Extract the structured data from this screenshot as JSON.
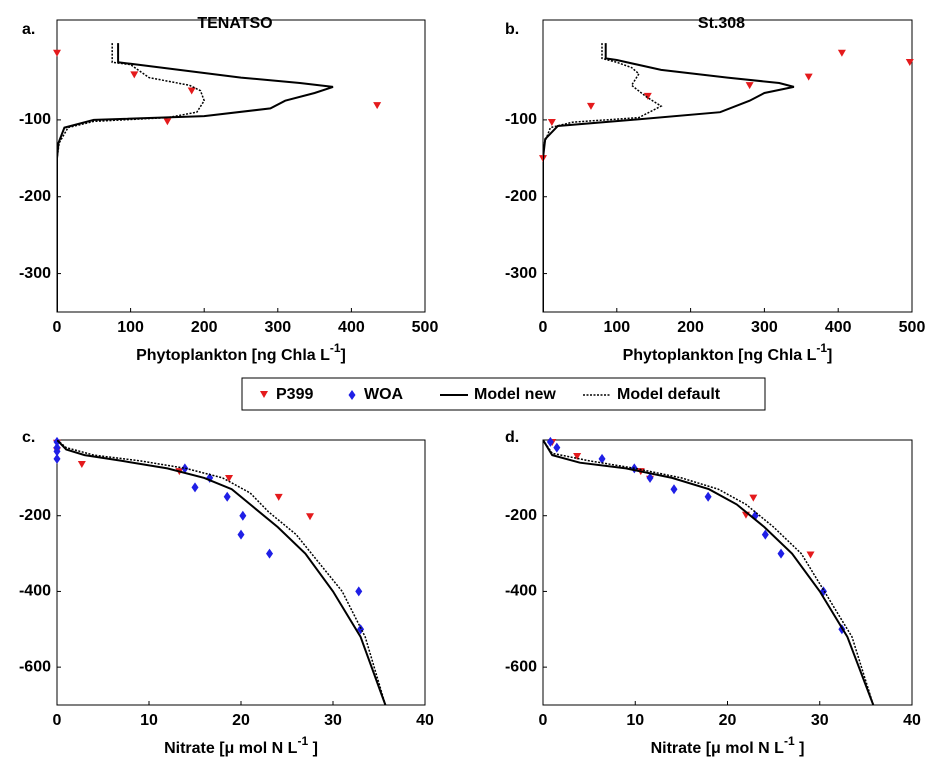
{
  "chart_data": [
    {
      "type": "line",
      "label": "a.",
      "title": "TENATSO",
      "xlabel": [
        "Phytoplankton [ng Chla L",
        "-1",
        "]"
      ],
      "xlim": [
        0,
        500
      ],
      "ylim": [
        -350,
        30
      ],
      "xticks": [
        0,
        100,
        200,
        300,
        400,
        500
      ],
      "yticks": [
        -100,
        -200,
        -300
      ],
      "series": [
        {
          "name": "P399",
          "color": "#e41a1c",
          "marker": "triangle",
          "x": [
            0,
            105,
            183,
            435,
            150
          ],
          "y": [
            -14,
            -42,
            -63,
            -82,
            -103
          ]
        },
        {
          "name": "Model new",
          "color": "#000000",
          "dash": "solid",
          "x": [
            83,
            83,
            100,
            150,
            250,
            330,
            375,
            350,
            310,
            290,
            200,
            50,
            10,
            2,
            0,
            0
          ],
          "y": [
            0,
            -25,
            -27,
            -33,
            -45,
            -52,
            -57,
            -65,
            -75,
            -85,
            -95,
            -100,
            -110,
            -130,
            -150,
            -350
          ]
        },
        {
          "name": "Model default",
          "color": "#000000",
          "dash": "dotted",
          "x": [
            75,
            75,
            100,
            110,
            125,
            180,
            195,
            200,
            190,
            150,
            50,
            15,
            3,
            0,
            0
          ],
          "y": [
            0,
            -25,
            -28,
            -35,
            -45,
            -55,
            -62,
            -75,
            -90,
            -97,
            -102,
            -110,
            -130,
            -150,
            -350
          ]
        }
      ]
    },
    {
      "type": "line",
      "label": "b.",
      "title": "St.308",
      "xlabel": [
        "Phytoplankton [ng Chla L",
        "-1",
        "]"
      ],
      "xlim": [
        0,
        500
      ],
      "ylim": [
        -350,
        30
      ],
      "xticks": [
        0,
        100,
        200,
        300,
        400,
        500
      ],
      "yticks": [
        -100,
        -200,
        -300
      ],
      "series": [
        {
          "name": "P399",
          "color": "#e41a1c",
          "marker": "triangle",
          "x": [
            405,
            497,
            360,
            280,
            142,
            65,
            12,
            0
          ],
          "y": [
            -14,
            -26,
            -45,
            -56,
            -70,
            -83,
            -104,
            -151
          ]
        },
        {
          "name": "Model new",
          "color": "#000000",
          "dash": "solid",
          "x": [
            85,
            85,
            100,
            160,
            250,
            320,
            340,
            300,
            280,
            240,
            120,
            20,
            3,
            0,
            0
          ],
          "y": [
            0,
            -20,
            -22,
            -35,
            -45,
            -52,
            -57,
            -65,
            -75,
            -90,
            -100,
            -108,
            -125,
            -150,
            -350
          ]
        },
        {
          "name": "Model default",
          "color": "#000000",
          "dash": "dotted",
          "x": [
            80,
            80,
            100,
            120,
            130,
            120,
            140,
            160,
            130,
            40,
            10,
            2,
            0,
            0
          ],
          "y": [
            0,
            -20,
            -25,
            -32,
            -40,
            -55,
            -70,
            -82,
            -97,
            -103,
            -110,
            -130,
            -150,
            -350
          ]
        }
      ]
    },
    {
      "type": "line",
      "label": "c.",
      "xlabel": [
        "Nitrate [μ mol N L",
        "-1",
        "  ]"
      ],
      "xlim": [
        0,
        40
      ],
      "ylim": [
        -700,
        0
      ],
      "xticks": [
        0,
        10,
        20,
        30,
        40
      ],
      "yticks": [
        -200,
        -400,
        -600
      ],
      "series": [
        {
          "name": "P399",
          "color": "#e41a1c",
          "marker": "triangle",
          "x": [
            0,
            0,
            2.7,
            13.3,
            18.7,
            24.1,
            27.5
          ],
          "y": [
            -10,
            -30,
            -66,
            -85,
            -103,
            -153,
            -204
          ]
        },
        {
          "name": "WOA",
          "color": "#1f1fe6",
          "marker": "diamond",
          "x": [
            0,
            0,
            0,
            0,
            13.9,
            16.6,
            15,
            18.5,
            20.2,
            20,
            23.1,
            32.8,
            33
          ],
          "y": [
            -5,
            -20,
            -30,
            -50,
            -75,
            -100,
            -125,
            -150,
            -200,
            -250,
            -300,
            -400,
            -500
          ]
        },
        {
          "name": "Model new",
          "color": "#000000",
          "dash": "solid",
          "x": [
            0,
            1,
            3,
            7,
            12,
            16,
            19,
            21,
            24,
            27,
            30,
            33,
            35.7
          ],
          "y": [
            0,
            -25,
            -40,
            -55,
            -75,
            -100,
            -130,
            -170,
            -230,
            -300,
            -400,
            -520,
            -700
          ]
        },
        {
          "name": "Model default",
          "color": "#000000",
          "dash": "dotted",
          "x": [
            0,
            1,
            4,
            9,
            14,
            18,
            21,
            23,
            26,
            28,
            31,
            33.5,
            35.7
          ],
          "y": [
            0,
            -20,
            -40,
            -55,
            -75,
            -100,
            -140,
            -190,
            -250,
            -310,
            -400,
            -520,
            -700
          ]
        }
      ]
    },
    {
      "type": "line",
      "label": "d.",
      "xlabel": [
        "Nitrate [μ mol N L",
        "-1",
        "  ]"
      ],
      "xlim": [
        0,
        40
      ],
      "ylim": [
        -700,
        0
      ],
      "xticks": [
        0,
        10,
        20,
        30,
        40
      ],
      "yticks": [
        -200,
        -400,
        -600
      ],
      "series": [
        {
          "name": "P399",
          "color": "#e41a1c",
          "marker": "triangle",
          "x": [
            1,
            3.7,
            10.6,
            11.6,
            22,
            22.8,
            29
          ],
          "y": [
            -8,
            -45,
            -85,
            -105,
            -200,
            -155,
            -305
          ]
        },
        {
          "name": "WOA",
          "color": "#1f1fe6",
          "marker": "diamond",
          "x": [
            0.8,
            1.5,
            6.4,
            9.9,
            11.6,
            14.2,
            17.9,
            23,
            24.1,
            25.8,
            30.4,
            32.4
          ],
          "y": [
            -5,
            -20,
            -50,
            -75,
            -100,
            -130,
            -150,
            -200,
            -250,
            -300,
            -400,
            -500
          ]
        },
        {
          "name": "Model new",
          "color": "#000000",
          "dash": "solid",
          "x": [
            0,
            1,
            4,
            9,
            14,
            18,
            21,
            24,
            27,
            30,
            33,
            35.8
          ],
          "y": [
            0,
            -40,
            -60,
            -75,
            -100,
            -130,
            -170,
            -230,
            -300,
            -400,
            -520,
            -700
          ]
        },
        {
          "name": "Model default",
          "color": "#000000",
          "dash": "dotted",
          "x": [
            0,
            1,
            5,
            10,
            15,
            19,
            22,
            25,
            28,
            30.5,
            33.5,
            35.8
          ],
          "y": [
            0,
            -35,
            -55,
            -75,
            -100,
            -130,
            -170,
            -230,
            -300,
            -400,
            -520,
            -700
          ]
        }
      ]
    }
  ]
}
